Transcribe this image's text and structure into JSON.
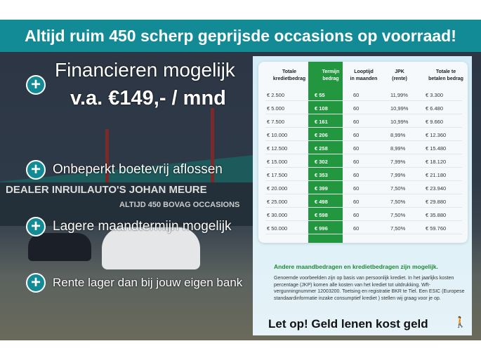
{
  "banner": {
    "title": "Altijd ruim 450 scherp geprijsde occasions op voorraad!"
  },
  "hero": {
    "line1": "Financieren mogelijk",
    "line2": "v.a. €149,- / mnd"
  },
  "features": [
    {
      "label": "Onbeperkt boetevrij aflossen"
    },
    {
      "label": "Lagere maandtermijn mogelijk"
    },
    {
      "label": "Rente lager dan bij jouw eigen bank"
    }
  ],
  "photo_sign": "DEALER INRUILAUTO'S JOHAN MEURE",
  "photo_sign2": "ALTIJD 450 BOVAG OCCASIONS",
  "table": {
    "headers": [
      [
        "Totale",
        "kredietbedrag"
      ],
      [
        "Termijn",
        "bedrag"
      ],
      [
        "Looptijd",
        "in maanden"
      ],
      [
        "JPK",
        "(rente)"
      ],
      [
        "Totale te",
        "betalen bedrag"
      ]
    ],
    "rows": [
      [
        "€ 2.500",
        "€ 55",
        "60",
        "11,99%",
        "€ 3.300"
      ],
      [
        "€ 5.000",
        "€ 108",
        "60",
        "10,99%",
        "€ 6.480"
      ],
      [
        "€ 7.500",
        "€ 161",
        "60",
        "10,99%",
        "€ 9.660"
      ],
      [
        "€ 10.000",
        "€ 206",
        "60",
        "8,99%",
        "€ 12.360"
      ],
      [
        "€ 12.500",
        "€ 258",
        "60",
        "8,99%",
        "€ 15.480"
      ],
      [
        "€ 15.000",
        "€ 302",
        "60",
        "7,99%",
        "€ 18.120"
      ],
      [
        "€ 17.500",
        "€ 353",
        "60",
        "7,99%",
        "€ 21.180"
      ],
      [
        "€ 20.000",
        "€ 399",
        "60",
        "7,50%",
        "€ 23.940"
      ],
      [
        "€ 25.000",
        "€ 498",
        "60",
        "7,50%",
        "€ 29.880"
      ],
      [
        "€ 30.000",
        "€ 598",
        "60",
        "7,50%",
        "€ 35.880"
      ],
      [
        "€ 50.000",
        "€ 996",
        "60",
        "7,50%",
        "€ 59.760"
      ]
    ]
  },
  "more": "Andere maandbedragen en kredietbedragen zijn mogelijk.",
  "disclaimer": "Genoemde voorbeelden zijn op basis van persoonlijk krediet. In het jaarlijks kosten percentage (JKP) komen alle kosten van het krediet tot uitdrukking. Wft-vergunningnummer 12003200. Toetsing en registratie BKR te Tiel. Een ESIC (Europese standaardinformatie inzake consumptief krediet ) stellen wij graag voor je op.",
  "warning": "Let op! Geld lenen kost geld",
  "colors": {
    "teal": "#138b96",
    "green": "#22973f"
  }
}
